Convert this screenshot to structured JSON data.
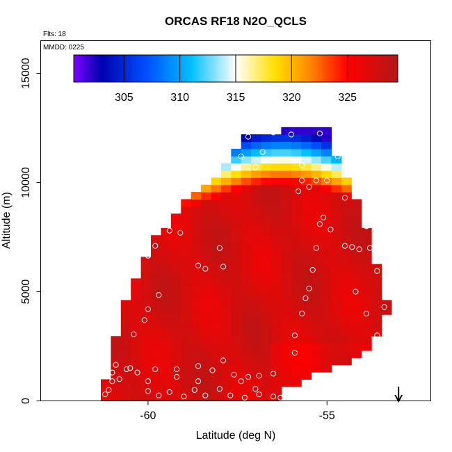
{
  "chart_data": {
    "type": "heatmap",
    "title": "ORCAS RF18 N2O_QCLS",
    "flights_label": "Flts: 18",
    "date_label": "MMDD: 0225",
    "xlabel": "Latitude (deg N)",
    "ylabel": "Altitude (m)",
    "xlim": [
      -63,
      -52.1
    ],
    "ylim": [
      0,
      16500
    ],
    "x_ticks": [
      -60,
      -55
    ],
    "x_tick_labels": [
      "-60",
      "-55"
    ],
    "y_ticks": [
      0,
      5000,
      10000,
      15000
    ],
    "y_tick_labels": [
      "0",
      "5000",
      "10000",
      "15000"
    ],
    "colorbar": {
      "range": [
        300.5,
        329.5
      ],
      "ticks": [
        305,
        310,
        315,
        320,
        325
      ],
      "tick_labels": [
        "305",
        "310",
        "315",
        "320",
        "325"
      ],
      "colors": [
        "#7b00ff",
        "#0000b0",
        "#0050ff",
        "#00bfff",
        "#ffffff",
        "#ffe000",
        "#ff8c00",
        "#ff0000",
        "#b01818"
      ],
      "color_stops": [
        300.5,
        303,
        307,
        311,
        315,
        318.5,
        321.5,
        325,
        329.5
      ]
    },
    "field_description": "Gridded N2O concentration (ppb) curtain; values near 327-328 below ~9000 m, decreasing to ~302 near 12400 m at the top of the sampled region",
    "envelope": [
      [
        -61.3,
        0
      ],
      [
        -61.3,
        600
      ],
      [
        -61.0,
        1500
      ],
      [
        -61.0,
        2700
      ],
      [
        -60.7,
        3700
      ],
      [
        -60.6,
        4800
      ],
      [
        -60.2,
        6000
      ],
      [
        -60.0,
        7000
      ],
      [
        -59.5,
        8000
      ],
      [
        -59.0,
        9000
      ],
      [
        -58.3,
        10000
      ],
      [
        -57.7,
        11000
      ],
      [
        -57.3,
        12100
      ],
      [
        -56.0,
        12500
      ],
      [
        -55.0,
        12450
      ],
      [
        -54.8,
        11500
      ],
      [
        -54.6,
        10500
      ],
      [
        -54.2,
        9500
      ],
      [
        -53.9,
        8000
      ],
      [
        -53.6,
        6300
      ],
      [
        -53.3,
        4500
      ],
      [
        -53.3,
        4000
      ],
      [
        -53.5,
        3000
      ],
      [
        -54.2,
        2000
      ],
      [
        -55.3,
        1200
      ],
      [
        -56.1,
        600
      ],
      [
        -56.5,
        0
      ]
    ],
    "profile_points": [
      [
        -61.2,
        300
      ],
      [
        -61.1,
        500
      ],
      [
        -61.0,
        900
      ],
      [
        -61.0,
        1300
      ],
      [
        -60.9,
        1650
      ],
      [
        -60.8,
        1000
      ],
      [
        -60.6,
        1450
      ],
      [
        -60.3,
        1300
      ],
      [
        -60.5,
        1500
      ],
      [
        -60.0,
        900
      ],
      [
        -59.8,
        1450
      ],
      [
        -59.2,
        1450
      ],
      [
        -59.2,
        1100
      ],
      [
        -58.6,
        900
      ],
      [
        -58.7,
        500
      ],
      [
        -60.0,
        450
      ],
      [
        -59.7,
        250
      ],
      [
        -59.4,
        400
      ],
      [
        -59.0,
        200
      ],
      [
        -58.4,
        250
      ],
      [
        -58.0,
        550
      ],
      [
        -57.7,
        250
      ],
      [
        -57.3,
        150
      ],
      [
        -57.0,
        550
      ],
      [
        -56.9,
        300
      ],
      [
        -56.5,
        200
      ],
      [
        -56.3,
        150
      ],
      [
        -57.6,
        1200
      ],
      [
        -57.2,
        1100
      ],
      [
        -57.4,
        900
      ],
      [
        -56.9,
        1150
      ],
      [
        -56.5,
        1250
      ],
      [
        -58.2,
        1400
      ],
      [
        -58.6,
        1600
      ],
      [
        -57.9,
        1850
      ],
      [
        -60.4,
        3050
      ],
      [
        -60.1,
        3700
      ],
      [
        -60.0,
        4200
      ],
      [
        -59.7,
        4850
      ],
      [
        -60.0,
        6650
      ],
      [
        -59.8,
        7100
      ],
      [
        -59.1,
        7700
      ],
      [
        -59.4,
        7800
      ],
      [
        -58.6,
        6200
      ],
      [
        -58.4,
        6050
      ],
      [
        -57.9,
        6150
      ],
      [
        -58.0,
        7000
      ],
      [
        -55.9,
        2200
      ],
      [
        -55.9,
        3000
      ],
      [
        -55.7,
        4000
      ],
      [
        -55.6,
        4700
      ],
      [
        -55.5,
        5150
      ],
      [
        -55.4,
        6000
      ],
      [
        -55.3,
        7000
      ],
      [
        -55.2,
        8100
      ],
      [
        -55.1,
        8400
      ],
      [
        -54.9,
        7850
      ],
      [
        -54.5,
        7100
      ],
      [
        -54.3,
        7050
      ],
      [
        -54.1,
        6950
      ],
      [
        -53.9,
        8000
      ],
      [
        -53.8,
        7000
      ],
      [
        -53.6,
        5950
      ],
      [
        -53.4,
        4300
      ],
      [
        -53.9,
        4000
      ],
      [
        -53.6,
        3000
      ],
      [
        -54.2,
        5000
      ],
      [
        -54.5,
        9300
      ],
      [
        -54.4,
        10500
      ],
      [
        -54.7,
        11200
      ],
      [
        -55.0,
        10100
      ],
      [
        -55.3,
        10100
      ],
      [
        -55.7,
        10100
      ],
      [
        -55.5,
        9800
      ],
      [
        -55.8,
        9600
      ],
      [
        -55.7,
        10800
      ],
      [
        -56.0,
        12200
      ],
      [
        -55.2,
        12250
      ],
      [
        -56.5,
        12300
      ],
      [
        -57.2,
        12100
      ],
      [
        -57.4,
        11200
      ],
      [
        -57.0,
        10700
      ],
      [
        -56.8,
        11400
      ]
    ],
    "marker": {
      "label": "arrow",
      "x": -53.0
    }
  }
}
